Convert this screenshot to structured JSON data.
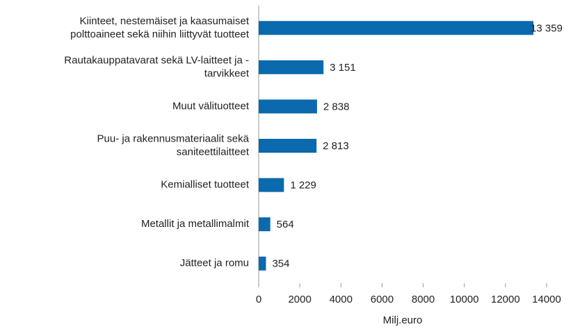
{
  "chart_data": {
    "type": "hbar",
    "categories": [
      "Kiinteet, nestemäiset ja kaasumaiset\npolttoaineet sekä niihin liittyvät tuotteet",
      "Rautakauppatavarat sekä LV-laitteet ja -\ntarvikkeet",
      "Muut välituotteet",
      "Puu- ja rakennusmateriaalit sekä\nsaniteettilaitteet",
      "Kemialliset tuotteet",
      "Metallit ja metallimalmit",
      "Jätteet ja romu"
    ],
    "values": [
      13359,
      3151,
      2838,
      2813,
      1229,
      564,
      354
    ],
    "value_labels": [
      "13 359",
      "3 151",
      "2 838",
      "2 813",
      "1 229",
      "564",
      "354"
    ],
    "color": "#0a6aad",
    "xlim": [
      0,
      14000
    ],
    "xticks": [
      0,
      2000,
      4000,
      6000,
      8000,
      10000,
      12000,
      14000
    ],
    "xlabel": "Milj.euro"
  }
}
